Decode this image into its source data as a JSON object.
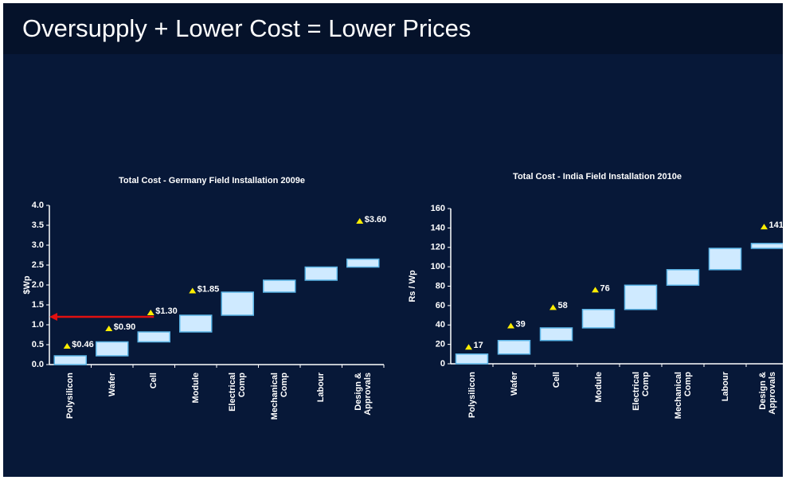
{
  "page_title": "Oversupply + Lower Cost = Lower Prices",
  "chart_data": [
    {
      "type": "waterfall",
      "title": "Total Cost - Germany Field Installation 2009e",
      "y_label": "$Wp",
      "categories": [
        "Polysilicon",
        "Wafer",
        "Cell",
        "Module",
        "Electrical Comp",
        "Mechanical Comp",
        "Labour",
        "Design & Approvals"
      ],
      "values": [
        0.22,
        0.35,
        0.25,
        0.42,
        0.58,
        0.3,
        0.33,
        0.2
      ],
      "color": "#cfeaff",
      "edge_color": "#5ab4e6",
      "prices": {
        "values": [
          0.46,
          0.9,
          1.3,
          1.85,
          null,
          null,
          null,
          3.6
        ],
        "value_labels": [
          "$0.46",
          "$0.90",
          "$1.30",
          "$1.85",
          null,
          null,
          null,
          "$3.60"
        ],
        "color": "#ffee00"
      },
      "reference_line": {
        "value": 1.2,
        "color": "#e01010"
      },
      "ylim": [
        0,
        4
      ],
      "yticks": [
        {
          "value": 0,
          "label": "0.0"
        },
        {
          "value": 0.5,
          "label": "0.5"
        },
        {
          "value": 1,
          "label": "1.0"
        },
        {
          "value": 1.5,
          "label": "1.5"
        },
        {
          "value": 2,
          "label": "2.0"
        },
        {
          "value": 2.5,
          "label": "2.5"
        },
        {
          "value": 3,
          "label": "3.0"
        },
        {
          "value": 3.5,
          "label": "3.5"
        },
        {
          "value": 4,
          "label": "4.0"
        }
      ],
      "grid": false
    },
    {
      "type": "waterfall",
      "title": "Total Cost - India Field Installation 2010e",
      "y_label": "Rs / Wp",
      "categories": [
        "Polysilicon",
        "Wafer",
        "Cell",
        "Module",
        "Electrical Comp",
        "Mechanical Comp",
        "Labour",
        "Design & Approvals"
      ],
      "values": [
        10,
        14,
        13,
        19,
        25,
        16,
        22,
        5
      ],
      "color": "#cfeaff",
      "edge_color": "#5ab4e6",
      "prices": {
        "values": [
          17,
          39,
          58,
          76,
          null,
          null,
          null,
          141
        ],
        "color": "#ffee00"
      },
      "ylim": [
        0,
        160
      ],
      "yticks": [
        0,
        20,
        40,
        60,
        80,
        100,
        120,
        140,
        160
      ],
      "grid": false
    }
  ]
}
